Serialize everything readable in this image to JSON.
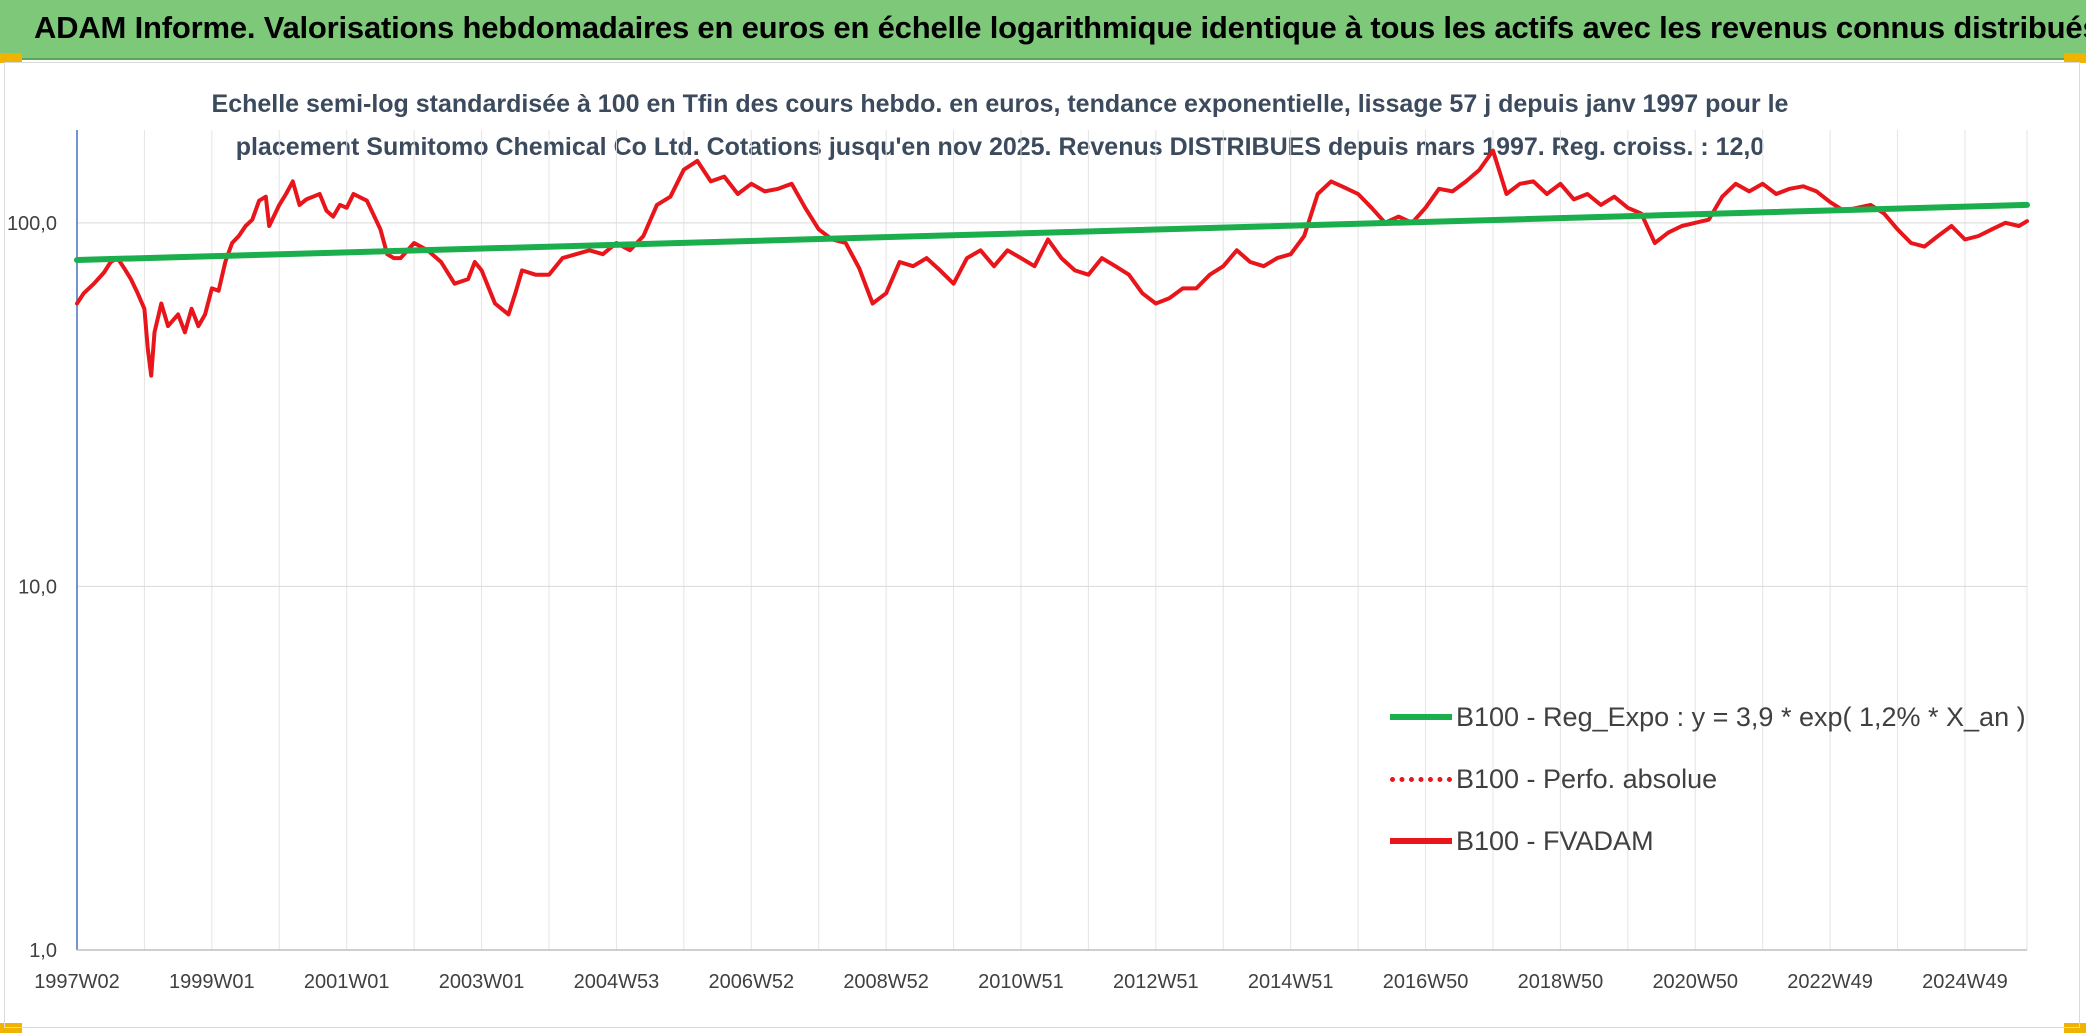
{
  "banner": {
    "title": "ADAM Informe. Valorisations hebdomadaires en euros en échelle logarithmique identique à tous les actifs avec les revenus connus distribués"
  },
  "chart_data": {
    "type": "line",
    "title_line1": "Echelle semi-log standardisée à 100 en Tfin des cours hebdo. en euros, tendance exponentielle, lissage 57 j depuis janv 1997 pour le",
    "title_line2": "placement Sumitomo Chemical Co Ltd. Cotations jusqu'en nov 2025. Revenus DISTRIBUES depuis mars 1997. Reg. croiss. : 12,0",
    "y_scale": "log",
    "ylim": [
      1,
      180
    ],
    "yticks": [
      {
        "value": 1,
        "label": "1,0"
      },
      {
        "value": 10,
        "label": "10,0"
      },
      {
        "value": 100,
        "label": "100,0"
      }
    ],
    "xlim": [
      1997.0,
      2025.92
    ],
    "xticks": [
      {
        "value": 1997.0,
        "label": "1997W02"
      },
      {
        "value": 1999.0,
        "label": "1999W01"
      },
      {
        "value": 2001.0,
        "label": "2001W01"
      },
      {
        "value": 2003.0,
        "label": "2003W01"
      },
      {
        "value": 2005.0,
        "label": "2004W53"
      },
      {
        "value": 2007.0,
        "label": "2006W52"
      },
      {
        "value": 2009.0,
        "label": "2008W52"
      },
      {
        "value": 2011.0,
        "label": "2010W51"
      },
      {
        "value": 2013.0,
        "label": "2012W51"
      },
      {
        "value": 2015.0,
        "label": "2014W51"
      },
      {
        "value": 2017.0,
        "label": "2016W50"
      },
      {
        "value": 2019.0,
        "label": "2018W50"
      },
      {
        "value": 2021.0,
        "label": "2020W50"
      },
      {
        "value": 2023.0,
        "label": "2022W49"
      },
      {
        "value": 2025.0,
        "label": "2024W49"
      }
    ],
    "grid": true,
    "legend_position": "bottom-right",
    "series": [
      {
        "name": "B100 - Reg_Expo : y = 3,9 * exp( 1,2% * X_an )",
        "color": "#1aae4c",
        "style": "solid",
        "x": [
          1997.0,
          2025.92
        ],
        "y": [
          79,
          112
        ]
      },
      {
        "name": "B100 - Perfo. absolue",
        "color": "#e8161b",
        "style": "dotted",
        "x": [],
        "y": []
      },
      {
        "name": "B100 - FVADAM",
        "color": "#e8161b",
        "style": "solid",
        "x": [
          1997.0,
          1997.1,
          1997.25,
          1997.4,
          1997.5,
          1997.6,
          1997.7,
          1997.8,
          1997.9,
          1998.0,
          1998.05,
          1998.1,
          1998.15,
          1998.25,
          1998.35,
          1998.5,
          1998.6,
          1998.7,
          1998.8,
          1998.9,
          1999.0,
          1999.1,
          1999.2,
          1999.3,
          1999.4,
          1999.5,
          1999.6,
          1999.7,
          1999.8,
          1999.85,
          2000.0,
          2000.1,
          2000.2,
          2000.3,
          2000.4,
          2000.5,
          2000.6,
          2000.7,
          2000.8,
          2000.9,
          2001.0,
          2001.1,
          2001.3,
          2001.5,
          2001.6,
          2001.7,
          2001.8,
          2002.0,
          2002.2,
          2002.4,
          2002.6,
          2002.8,
          2002.9,
          2003.0,
          2003.2,
          2003.4,
          2003.5,
          2003.6,
          2003.8,
          2004.0,
          2004.2,
          2004.4,
          2004.6,
          2004.8,
          2005.0,
          2005.2,
          2005.4,
          2005.6,
          2005.8,
          2006.0,
          2006.2,
          2006.4,
          2006.6,
          2006.8,
          2007.0,
          2007.2,
          2007.4,
          2007.6,
          2007.8,
          2008.0,
          2008.2,
          2008.4,
          2008.6,
          2008.8,
          2008.9,
          2009.0,
          2009.2,
          2009.4,
          2009.6,
          2009.8,
          2010.0,
          2010.2,
          2010.4,
          2010.6,
          2010.8,
          2011.0,
          2011.2,
          2011.4,
          2011.6,
          2011.8,
          2012.0,
          2012.2,
          2012.4,
          2012.6,
          2012.8,
          2013.0,
          2013.2,
          2013.4,
          2013.6,
          2013.8,
          2014.0,
          2014.2,
          2014.4,
          2014.6,
          2014.8,
          2015.0,
          2015.2,
          2015.4,
          2015.6,
          2015.8,
          2016.0,
          2016.2,
          2016.4,
          2016.6,
          2016.8,
          2017.0,
          2017.2,
          2017.4,
          2017.6,
          2017.8,
          2018.0,
          2018.2,
          2018.4,
          2018.6,
          2018.8,
          2019.0,
          2019.2,
          2019.4,
          2019.6,
          2019.8,
          2020.0,
          2020.2,
          2020.4,
          2020.6,
          2020.8,
          2021.0,
          2021.2,
          2021.4,
          2021.6,
          2021.8,
          2022.0,
          2022.2,
          2022.4,
          2022.6,
          2022.8,
          2023.0,
          2023.2,
          2023.4,
          2023.6,
          2023.8,
          2024.0,
          2024.2,
          2024.4,
          2024.6,
          2024.8,
          2025.0,
          2025.2,
          2025.4,
          2025.6,
          2025.8,
          2025.92
        ],
        "y": [
          60,
          64,
          68,
          73,
          78,
          80,
          75,
          70,
          64,
          58,
          45,
          38,
          50,
          60,
          52,
          56,
          50,
          58,
          52,
          56,
          66,
          65,
          78,
          88,
          92,
          98,
          102,
          115,
          118,
          98,
          112,
          120,
          130,
          112,
          116,
          118,
          120,
          108,
          104,
          112,
          110,
          120,
          115,
          96,
          82,
          80,
          80,
          88,
          84,
          78,
          68,
          70,
          78,
          74,
          60,
          56,
          64,
          74,
          72,
          72,
          80,
          82,
          84,
          82,
          88,
          84,
          92,
          112,
          118,
          140,
          148,
          130,
          134,
          120,
          128,
          122,
          124,
          128,
          110,
          96,
          90,
          88,
          75,
          60,
          62,
          64,
          78,
          76,
          80,
          74,
          68,
          80,
          84,
          76,
          84,
          80,
          76,
          90,
          80,
          74,
          72,
          80,
          76,
          72,
          64,
          60,
          62,
          66,
          66,
          72,
          76,
          84,
          78,
          76,
          80,
          82,
          92,
          120,
          130,
          125,
          120,
          110,
          100,
          104,
          100,
          110,
          124,
          122,
          130,
          140,
          158,
          120,
          128,
          130,
          120,
          128,
          116,
          120,
          112,
          118,
          110,
          106,
          88,
          94,
          98,
          100,
          102,
          118,
          128,
          122,
          128,
          120,
          124,
          126,
          122,
          114,
          108,
          110,
          112,
          106,
          96,
          88,
          86,
          92,
          98,
          90,
          92,
          96,
          100,
          98,
          101
        ]
      }
    ]
  }
}
